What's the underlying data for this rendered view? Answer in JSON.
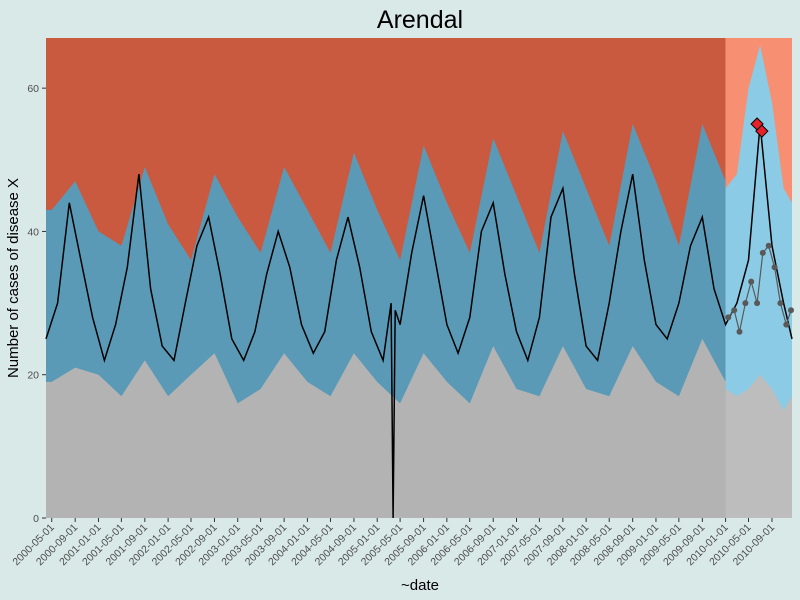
{
  "chart_data": {
    "type": "area",
    "title": "Arendal",
    "xlabel": "~date",
    "ylabel": "Number of cases of disease X",
    "xlim": [
      "2000-04-01",
      "2010-12-15"
    ],
    "ylim": [
      0,
      67
    ],
    "y_ticks": [
      0,
      20,
      40,
      60
    ],
    "x_ticks": [
      "2000-05-01",
      "2000-09-01",
      "2001-01-01",
      "2001-05-01",
      "2001-09-01",
      "2002-01-01",
      "2002-05-01",
      "2002-09-01",
      "2003-01-01",
      "2003-05-01",
      "2003-09-01",
      "2004-01-01",
      "2004-05-01",
      "2004-09-01",
      "2005-01-01",
      "2005-05-01",
      "2005-09-01",
      "2006-01-01",
      "2006-05-01",
      "2006-09-01",
      "2007-01-01",
      "2007-05-01",
      "2007-09-01",
      "2008-01-01",
      "2008-05-01",
      "2008-09-01",
      "2009-01-01",
      "2009-05-01",
      "2009-09-01",
      "2010-01-01",
      "2010-05-01",
      "2010-09-01"
    ],
    "grid": false,
    "legend": "none",
    "baseline_end": "2010-01-01",
    "colors": {
      "upper_region": "#c9593f",
      "upper_region_prediction": "#f78f72",
      "expected_band": "#5a9ab7",
      "expected_band_prediction": "#8ccbe6",
      "lower_region": "#b3b3b3",
      "lower_region_prediction": "#bdbdbd",
      "observed_line": "#000000",
      "observed_points": "#595959",
      "alert_marker": "#e8202a"
    },
    "series": [
      {
        "name": "baseline_band",
        "x": [
          "2000-05-01",
          "2000-09-01",
          "2001-01-01",
          "2001-05-01",
          "2001-09-01",
          "2002-01-01",
          "2002-05-01",
          "2002-09-01",
          "2003-01-01",
          "2003-05-01",
          "2003-09-01",
          "2004-01-01",
          "2004-05-01",
          "2004-09-01",
          "2005-01-01",
          "2005-05-01",
          "2005-09-01",
          "2006-01-01",
          "2006-05-01",
          "2006-09-01",
          "2007-01-01",
          "2007-05-01",
          "2007-09-01",
          "2008-01-01",
          "2008-05-01",
          "2008-09-01",
          "2009-01-01",
          "2009-05-01",
          "2009-09-01",
          "2010-01-01"
        ],
        "lower": [
          19,
          21,
          20,
          17,
          22,
          17,
          20,
          23,
          16,
          18,
          23,
          19,
          17,
          23,
          19,
          16,
          23,
          19,
          16,
          24,
          18,
          17,
          24,
          18,
          17,
          24,
          19,
          17,
          25,
          19
        ],
        "upper": [
          43,
          47,
          40,
          38,
          49,
          41,
          36,
          48,
          42,
          37,
          49,
          43,
          37,
          51,
          43,
          36,
          52,
          44,
          37,
          53,
          45,
          37,
          54,
          46,
          38,
          55,
          47,
          38,
          55,
          47
        ]
      },
      {
        "name": "prediction_band",
        "x": [
          "2010-01-01",
          "2010-03-01",
          "2010-05-01",
          "2010-07-01",
          "2010-09-01",
          "2010-11-01",
          "2010-12-15"
        ],
        "lower": [
          18,
          17,
          18,
          20,
          18,
          15,
          17
        ],
        "upper": [
          46,
          48,
          60,
          66,
          58,
          46,
          44
        ]
      },
      {
        "name": "observed",
        "x": [
          "2000-04-01",
          "2000-06-01",
          "2000-08-01",
          "2000-10-01",
          "2000-12-01",
          "2001-02-01",
          "2001-04-01",
          "2001-06-01",
          "2001-08-01",
          "2001-10-01",
          "2001-12-01",
          "2002-02-01",
          "2002-04-01",
          "2002-06-01",
          "2002-08-01",
          "2002-10-01",
          "2002-12-01",
          "2003-02-01",
          "2003-04-01",
          "2003-06-01",
          "2003-08-01",
          "2003-10-01",
          "2003-12-01",
          "2004-02-01",
          "2004-04-01",
          "2004-06-01",
          "2004-08-01",
          "2004-10-01",
          "2004-12-01",
          "2005-02-01",
          "2005-03-15",
          "2005-03-25",
          "2005-04-05",
          "2005-05-01",
          "2005-07-01",
          "2005-09-01",
          "2005-11-01",
          "2006-01-01",
          "2006-03-01",
          "2006-05-01",
          "2006-07-01",
          "2006-09-01",
          "2006-11-01",
          "2007-01-01",
          "2007-03-01",
          "2007-05-01",
          "2007-07-01",
          "2007-09-01",
          "2007-11-01",
          "2008-01-01",
          "2008-03-01",
          "2008-05-01",
          "2008-07-01",
          "2008-09-01",
          "2008-11-01",
          "2009-01-01",
          "2009-03-01",
          "2009-05-01",
          "2009-07-01",
          "2009-09-01",
          "2009-11-01",
          "2010-01-01",
          "2010-03-01",
          "2010-05-01",
          "2010-07-01",
          "2010-09-01",
          "2010-11-01",
          "2010-12-15"
        ],
        "y": [
          25,
          30,
          44,
          36,
          28,
          22,
          27,
          35,
          48,
          32,
          24,
          22,
          30,
          38,
          42,
          34,
          25,
          22,
          26,
          34,
          40,
          35,
          27,
          23,
          26,
          36,
          42,
          35,
          26,
          22,
          30,
          0,
          29,
          27,
          37,
          45,
          36,
          27,
          23,
          28,
          40,
          44,
          34,
          26,
          22,
          28,
          42,
          46,
          34,
          24,
          22,
          30,
          40,
          48,
          36,
          27,
          25,
          30,
          38,
          42,
          32,
          27,
          30,
          36,
          55,
          38,
          30,
          25
        ]
      }
    ],
    "prediction_points": {
      "x": [
        "2010-01-15",
        "2010-02-15",
        "2010-03-15",
        "2010-04-15",
        "2010-05-15",
        "2010-06-15",
        "2010-07-15",
        "2010-08-15",
        "2010-09-15",
        "2010-10-15",
        "2010-11-15",
        "2010-12-10"
      ],
      "y": [
        28,
        29,
        26,
        30,
        33,
        30,
        37,
        38,
        35,
        30,
        27,
        29
      ]
    },
    "alerts": {
      "x": [
        "2010-06-15",
        "2010-07-10"
      ],
      "y": [
        55,
        54
      ]
    }
  }
}
